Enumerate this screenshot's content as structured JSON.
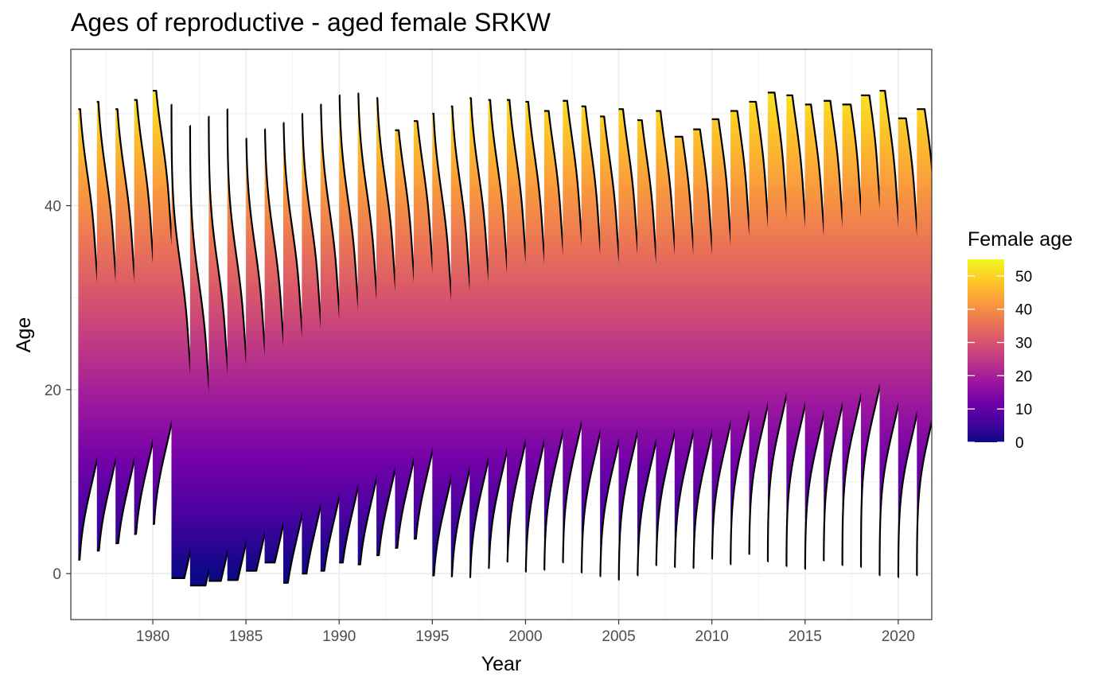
{
  "chart_data": {
    "type": "ridgeline",
    "title": "Ages of reproductive - aged female SRKW",
    "xlabel": "Year",
    "ylabel": "Age",
    "xlim": [
      1975.6,
      2021.8
    ],
    "ylim": [
      -5,
      57
    ],
    "x_ticks": [
      1980,
      1985,
      1990,
      1995,
      2000,
      2005,
      2010,
      2015,
      2020
    ],
    "x_tick_labels": [
      "1980",
      "1985",
      "1990",
      "1995",
      "2000",
      "2005",
      "2010",
      "2015",
      "2020"
    ],
    "y_ticks": [
      0,
      20,
      40
    ],
    "y_tick_labels": [
      "0",
      "20",
      "40"
    ],
    "grid": true,
    "colormap": "plasma",
    "legend": {
      "title": "Female age",
      "position": "right",
      "range": [
        0,
        55
      ],
      "ticks": [
        0,
        10,
        20,
        30,
        40,
        50
      ],
      "tick_labels": [
        "0",
        "10",
        "20",
        "30",
        "40",
        "50"
      ]
    },
    "series": [
      {
        "year": 1976,
        "min_age": 1.5,
        "max_age": 50.5,
        "peak_age": 22
      },
      {
        "year": 1977,
        "min_age": 2.5,
        "max_age": 51.3,
        "peak_age": 22
      },
      {
        "year": 1978,
        "min_age": 3.3,
        "max_age": 50.5,
        "peak_age": 22
      },
      {
        "year": 1979,
        "min_age": 4.3,
        "max_age": 51.5,
        "peak_age": 24
      },
      {
        "year": 1980,
        "min_age": 5.4,
        "max_age": 52.5,
        "peak_age": 26
      },
      {
        "year": 1981,
        "min_age": -0.5,
        "max_age": 51,
        "peak_age": 12
      },
      {
        "year": 1982,
        "min_age": -1.3,
        "max_age": 48.7,
        "peak_age": 10
      },
      {
        "year": 1983,
        "min_age": -0.8,
        "max_age": 49.7,
        "peak_age": 12
      },
      {
        "year": 1984,
        "min_age": -0.7,
        "max_age": 50.5,
        "peak_age": 13
      },
      {
        "year": 1985,
        "min_age": 0.3,
        "max_age": 47.3,
        "peak_age": 14
      },
      {
        "year": 1986,
        "min_age": 1.2,
        "max_age": 48.3,
        "peak_age": 15
      },
      {
        "year": 1987,
        "min_age": -1.0,
        "max_age": 49,
        "peak_age": 16
      },
      {
        "year": 1988,
        "min_age": 0,
        "max_age": 50,
        "peak_age": 17
      },
      {
        "year": 1989,
        "min_age": 0.3,
        "max_age": 51,
        "peak_age": 18
      },
      {
        "year": 1990,
        "min_age": 1.2,
        "max_age": 52,
        "peak_age": 19
      },
      {
        "year": 1991,
        "min_age": 1.0,
        "max_age": 52.2,
        "peak_age": 20
      },
      {
        "year": 1992,
        "min_age": 2.0,
        "max_age": 51.7,
        "peak_age": 21
      },
      {
        "year": 1993,
        "min_age": 2.8,
        "max_age": 48.2,
        "peak_age": 22
      },
      {
        "year": 1994,
        "min_age": 3.8,
        "max_age": 49.2,
        "peak_age": 23
      },
      {
        "year": 1995,
        "min_age": -0.2,
        "max_age": 50,
        "peak_age": 20
      },
      {
        "year": 1996,
        "min_age": -0.3,
        "max_age": 50.8,
        "peak_age": 21
      },
      {
        "year": 1997,
        "min_age": -0.4,
        "max_age": 51.7,
        "peak_age": 22
      },
      {
        "year": 1998,
        "min_age": 0.6,
        "max_age": 51.5,
        "peak_age": 23
      },
      {
        "year": 1999,
        "min_age": 1.3,
        "max_age": 51.5,
        "peak_age": 24
      },
      {
        "year": 2000,
        "min_age": 0.2,
        "max_age": 51.3,
        "peak_age": 24
      },
      {
        "year": 2001,
        "min_age": 0.4,
        "max_age": 50.3,
        "peak_age": 25
      },
      {
        "year": 2002,
        "min_age": 1.2,
        "max_age": 51.4,
        "peak_age": 26
      },
      {
        "year": 2003,
        "min_age": 0.1,
        "max_age": 50.8,
        "peak_age": 25
      },
      {
        "year": 2004,
        "min_age": -0.3,
        "max_age": 49.7,
        "peak_age": 24
      },
      {
        "year": 2005,
        "min_age": -0.7,
        "max_age": 50.5,
        "peak_age": 25
      },
      {
        "year": 2006,
        "min_age": -0.2,
        "max_age": 49.3,
        "peak_age": 24
      },
      {
        "year": 2007,
        "min_age": 0.9,
        "max_age": 50.3,
        "peak_age": 25
      },
      {
        "year": 2008,
        "min_age": 0.7,
        "max_age": 47.5,
        "peak_age": 25
      },
      {
        "year": 2009,
        "min_age": 0.6,
        "max_age": 48.3,
        "peak_age": 25
      },
      {
        "year": 2010,
        "min_age": 1.6,
        "max_age": 49.4,
        "peak_age": 26
      },
      {
        "year": 2011,
        "min_age": 1.0,
        "max_age": 50.3,
        "peak_age": 27
      },
      {
        "year": 2012,
        "min_age": 2.1,
        "max_age": 51.3,
        "peak_age": 28
      },
      {
        "year": 2013,
        "min_age": 1.3,
        "max_age": 52.3,
        "peak_age": 29
      },
      {
        "year": 2014,
        "min_age": 0.8,
        "max_age": 52,
        "peak_age": 28
      },
      {
        "year": 2015,
        "min_age": 0.5,
        "max_age": 51,
        "peak_age": 27
      },
      {
        "year": 2016,
        "min_age": 1.4,
        "max_age": 51.4,
        "peak_age": 28
      },
      {
        "year": 2017,
        "min_age": 0.9,
        "max_age": 51,
        "peak_age": 29
      },
      {
        "year": 2018,
        "min_age": 0.7,
        "max_age": 52,
        "peak_age": 30
      },
      {
        "year": 2019,
        "min_age": -0.2,
        "max_age": 52.5,
        "peak_age": 28
      },
      {
        "year": 2020,
        "min_age": -0.4,
        "max_age": 49.5,
        "peak_age": 27
      },
      {
        "year": 2021,
        "min_age": -0.2,
        "max_age": 50.5,
        "peak_age": 28
      }
    ]
  }
}
